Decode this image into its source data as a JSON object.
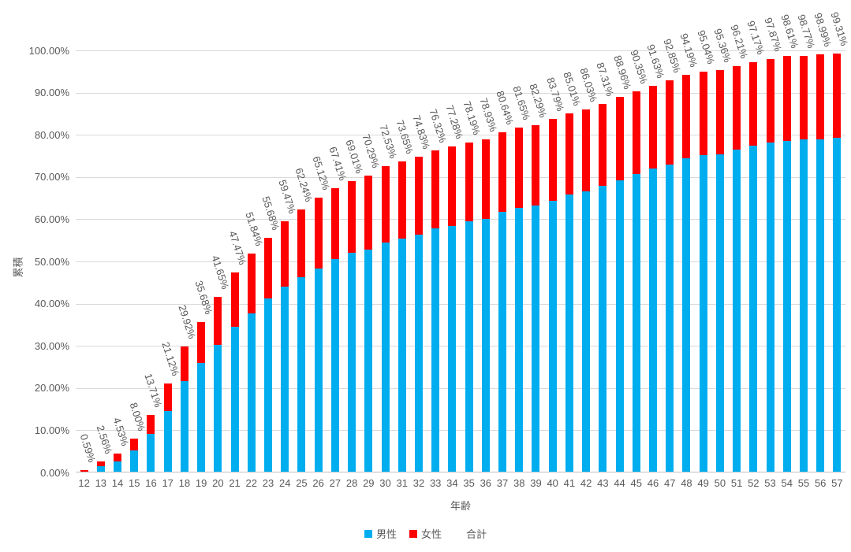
{
  "chart_data": {
    "type": "bar",
    "stacked": true,
    "title": "",
    "xlabel": "年齢",
    "ylabel": "累積",
    "ylim": [
      0,
      100
    ],
    "grid": true,
    "legend_position": "bottom",
    "ytick_labels": [
      "0.00%",
      "10.00%",
      "20.00%",
      "30.00%",
      "40.00%",
      "50.00%",
      "60.00%",
      "70.00%",
      "80.00%",
      "90.00%",
      "100.00%"
    ],
    "categories": [
      "12",
      "13",
      "14",
      "15",
      "16",
      "17",
      "18",
      "19",
      "20",
      "21",
      "22",
      "23",
      "24",
      "25",
      "26",
      "27",
      "28",
      "29",
      "30",
      "31",
      "32",
      "33",
      "34",
      "35",
      "36",
      "37",
      "38",
      "39",
      "40",
      "41",
      "42",
      "43",
      "44",
      "45",
      "46",
      "47",
      "48",
      "49",
      "50",
      "51",
      "52",
      "53",
      "54",
      "55",
      "56",
      "57"
    ],
    "series": [
      {
        "name": "男性",
        "color": "#00AEEF",
        "values": [
          0.1,
          1.55,
          2.55,
          5.15,
          9.2,
          14.5,
          21.6,
          25.9,
          30.3,
          34.5,
          37.7,
          41.2,
          44.0,
          46.2,
          48.3,
          50.5,
          52.0,
          52.8,
          54.5,
          55.4,
          56.4,
          57.8,
          58.4,
          59.5,
          60.1,
          61.8,
          62.6,
          63.3,
          64.4,
          65.8,
          66.6,
          68.0,
          69.3,
          70.8,
          72.1,
          73.0,
          74.4,
          75.1,
          75.4,
          76.4,
          77.5,
          78.1,
          78.5,
          78.9,
          79.0,
          79.3
        ]
      },
      {
        "name": "女性",
        "color": "#FF0000",
        "values": [
          0.49,
          1.01,
          1.98,
          2.85,
          4.51,
          6.62,
          8.32,
          9.78,
          11.35,
          12.97,
          14.14,
          14.48,
          15.47,
          16.04,
          16.82,
          16.91,
          17.01,
          17.49,
          18.03,
          18.25,
          18.43,
          18.52,
          18.88,
          18.69,
          18.83,
          18.84,
          19.05,
          18.99,
          19.39,
          19.21,
          19.43,
          19.31,
          19.66,
          19.55,
          19.53,
          19.85,
          19.79,
          19.94,
          19.96,
          19.81,
          19.67,
          19.77,
          20.11,
          19.87,
          19.99,
          20.01
        ]
      }
    ],
    "total_series_name": "合計",
    "total_labels": [
      "0.59%",
      "2.56%",
      "4.53%",
      "8.00%",
      "13.71%",
      "21.12%",
      "29.92%",
      "35.68%",
      "41.65%",
      "47.47%",
      "51.84%",
      "55.68%",
      "59.47%",
      "62.24%",
      "65.12%",
      "67.41%",
      "69.01%",
      "70.29%",
      "72.53%",
      "73.65%",
      "74.83%",
      "76.32%",
      "77.28%",
      "78.19%",
      "78.93%",
      "80.64%",
      "81.65%",
      "82.29%",
      "83.79%",
      "85.01%",
      "86.03%",
      "87.31%",
      "88.96%",
      "90.35%",
      "91.63%",
      "92.85%",
      "94.19%",
      "95.04%",
      "95.36%",
      "96.21%",
      "97.17%",
      "97.87%",
      "98.61%",
      "98.77%",
      "98.99%",
      "99.31%"
    ],
    "legend": [
      {
        "label": "男性",
        "swatch": "#00AEEF"
      },
      {
        "label": "女性",
        "swatch": "#FF0000"
      },
      {
        "label": "合計",
        "swatch": "none"
      }
    ]
  },
  "style": {
    "grid_color": "#D9D9D9",
    "axis_color": "#BFBFBF",
    "text_color": "#595959"
  }
}
